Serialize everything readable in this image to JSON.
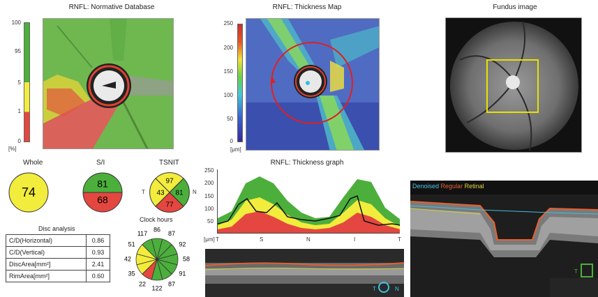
{
  "panels": {
    "normative_title": "RNFL: Normative Database",
    "thickness_map_title": "RNFL: Thickness Map",
    "fundus_title": "Fundus image",
    "thickness_graph_title": "RNFL: Thickness graph"
  },
  "normative_scale": {
    "ticks": [
      "100",
      "95",
      "5",
      "1",
      "0"
    ],
    "unit": "[%]"
  },
  "thickness_scale": {
    "ticks": [
      "250",
      "200",
      "150",
      "100",
      "50",
      "0"
    ],
    "unit": "[μm]"
  },
  "summary": {
    "whole_label": "Whole",
    "whole_value": "74",
    "si_label": "S/I",
    "s_value": "81",
    "i_value": "68",
    "tsnit_label": "TSNIT",
    "tsnit_t_letter": "T",
    "tsnit_n_letter": "N",
    "tsnit_s_value": "97",
    "tsnit_t_value": "43",
    "tsnit_n_value": "81",
    "tsnit_i_value": "77"
  },
  "disc_analysis": {
    "title": "Disc analysis",
    "rows": [
      {
        "label": "C/D(Horizontal)",
        "value": "0.86"
      },
      {
        "label": "C/D(Vertical)",
        "value": "0.93"
      },
      {
        "label": "DiscArea[mm²]",
        "value": "2.41"
      },
      {
        "label": "RimArea[mm²]",
        "value": "0.60"
      }
    ]
  },
  "clock_hours": {
    "title": "Clock hours",
    "values": [
      "86",
      "87",
      "92",
      "58",
      "91",
      "87",
      "122",
      "22",
      "35",
      "42",
      "51",
      "117"
    ]
  },
  "thickness_graph": {
    "y_ticks": [
      "250",
      "200",
      "150",
      "100",
      "50"
    ],
    "unit": "[μm]",
    "x_labels": [
      "T",
      "S",
      "N",
      "I",
      "T"
    ]
  },
  "bscan": {
    "legend_denoised": "Denoised",
    "legend_regular": "Regular",
    "legend_retinal": "Retinal",
    "letter_t": "T",
    "letter_n": "N",
    "small_t": "T"
  },
  "colors": {
    "green": "#4caf3c",
    "yellow": "#f2ec3c",
    "red": "#e4473f",
    "accent_red": "#e02020",
    "fundus_box": "#e8e200"
  }
}
